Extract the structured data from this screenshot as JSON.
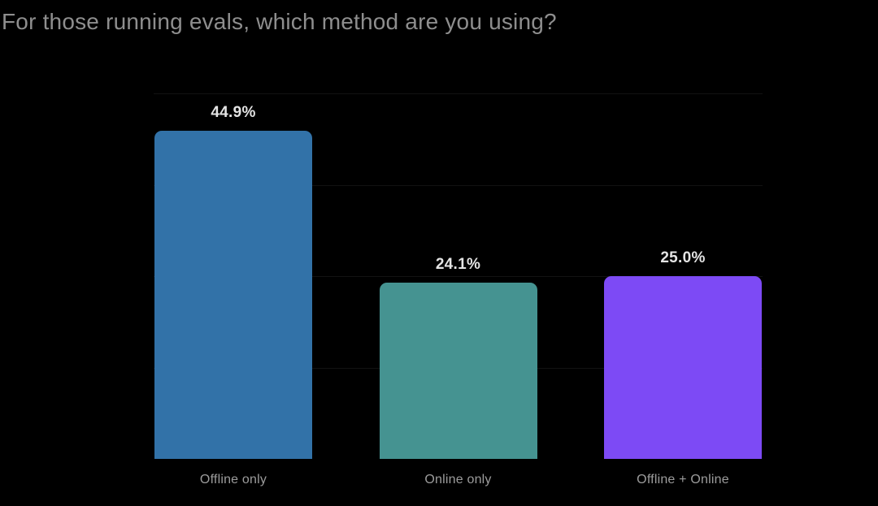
{
  "chart_data": {
    "type": "bar",
    "title": "For those running evals, which method are you using?",
    "categories": [
      "Offline only",
      "Online only",
      "Offline + Online"
    ],
    "values": [
      44.9,
      24.1,
      25.0
    ],
    "value_labels": [
      "44.9%",
      "24.1%",
      "25.0%"
    ],
    "bar_colors": [
      "#3272A8",
      "#459391",
      "#7D4AF5"
    ],
    "xlabel": "",
    "ylabel": "",
    "ylim": [
      0,
      50
    ],
    "grid": "horizontal-faint",
    "legend": "none",
    "background": "#000000"
  },
  "colors": {
    "background": "#000000",
    "title_text": "#8E8E8E",
    "value_label_text": "#E4E4E4",
    "category_label_text": "#9C9C9C",
    "gridline": "rgba(255,255,255,0.07)"
  }
}
